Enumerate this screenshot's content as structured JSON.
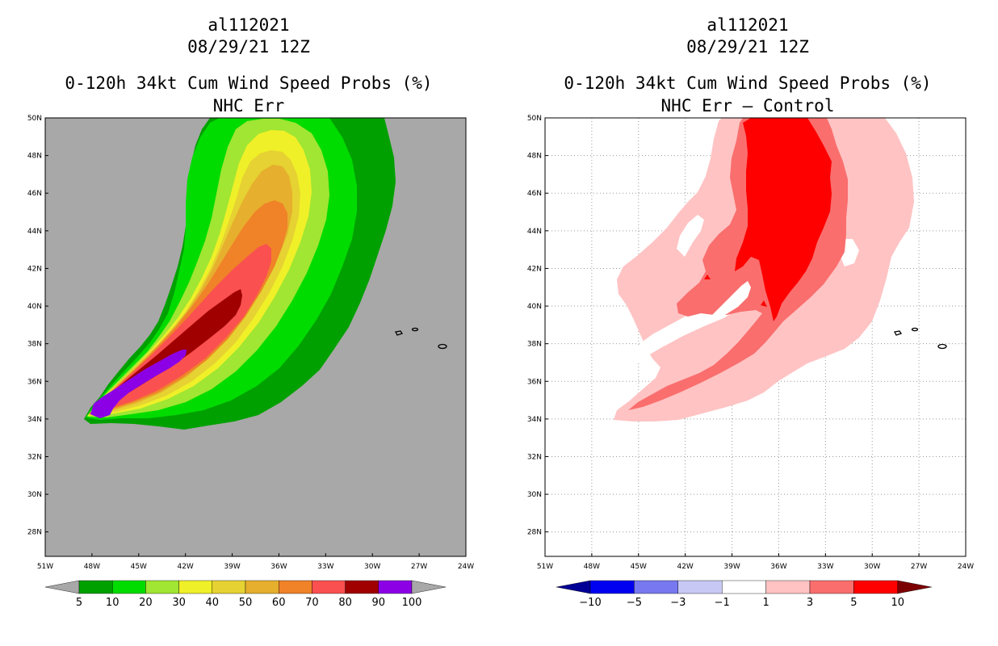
{
  "panels": [
    {
      "storm_id": "al112021",
      "date": "08/29/21 12Z",
      "title": "0-120h 34kt Cum Wind Speed Probs (%)",
      "subtitle": "NHC Err",
      "background_color": "#a8a8a8"
    },
    {
      "storm_id": "al112021",
      "date": "08/29/21 12Z",
      "title": "0-120h 34kt Cum Wind Speed Probs (%)",
      "subtitle": "NHC Err – Control",
      "background_color": "#ffffff"
    }
  ],
  "chart_data": [
    {
      "type": "contour-map",
      "title": "0-120h 34kt Cum Wind Speed Probs (%)",
      "subtitle": "NHC Err",
      "lon_range": [
        -51,
        -24
      ],
      "lat_range": [
        26.7,
        50
      ],
      "x_ticks": [
        "51W",
        "48W",
        "45W",
        "42W",
        "39W",
        "36W",
        "33W",
        "30W",
        "27W",
        "24W"
      ],
      "y_ticks": [
        "28N",
        "30N",
        "32N",
        "34N",
        "36N",
        "38N",
        "40N",
        "42N",
        "44N",
        "46N",
        "48N",
        "50N"
      ],
      "colorbar": {
        "levels": [
          "5",
          "10",
          "20",
          "30",
          "40",
          "50",
          "60",
          "70",
          "80",
          "90",
          "100"
        ],
        "colors": [
          "#00a000",
          "#00dc00",
          "#a0e632",
          "#f0f028",
          "#e6d232",
          "#e6af2d",
          "#f08228",
          "#fa5050",
          "#a00000",
          "#8c00e6"
        ],
        "under_color": "#a8a8a8",
        "over_color": "#a8a8a8"
      }
    },
    {
      "type": "contour-map",
      "title": "0-120h 34kt Cum Wind Speed Probs (%)",
      "subtitle": "NHC Err – Control",
      "lon_range": [
        -51,
        -24
      ],
      "lat_range": [
        26.7,
        50
      ],
      "x_ticks": [
        "51W",
        "48W",
        "45W",
        "42W",
        "39W",
        "36W",
        "33W",
        "30W",
        "27W",
        "24W"
      ],
      "y_ticks": [
        "28N",
        "30N",
        "32N",
        "34N",
        "36N",
        "38N",
        "40N",
        "42N",
        "44N",
        "46N",
        "48N",
        "50N"
      ],
      "grid": true,
      "colorbar": {
        "levels": [
          "−10",
          "−5",
          "−3",
          "−1",
          "1",
          "3",
          "5",
          "10"
        ],
        "colors": [
          "#0000f0",
          "#7878f0",
          "#c8c8f5",
          "#ffffff",
          "#ffc3c3",
          "#fa6e6e",
          "#ff0000"
        ],
        "under_color": "#000096",
        "over_color": "#7d0000"
      }
    }
  ]
}
